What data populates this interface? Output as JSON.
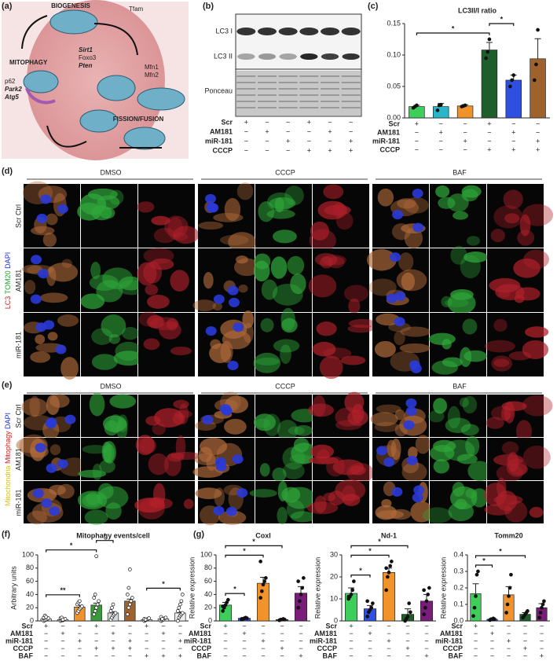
{
  "panel_labels": [
    "(a)",
    "(b)",
    "(c)",
    "(d)",
    "(e)",
    "(f)",
    "(g)"
  ],
  "diagram": [
    "BIOGENESIS",
    "Tfam",
    "MITOPHAGY",
    "Sirt1",
    "Foxo3",
    "Pten",
    "p62",
    "Park2",
    "Atg5",
    "Mfn1",
    "Mfn2",
    "FISSION/FUSION"
  ],
  "blot": {
    "labels": [
      "LC3 I",
      "LC3 II",
      "Ponceau"
    ],
    "conditions": [
      {
        "name": "Scr",
        "marks": [
          "+",
          "−",
          "−",
          "+",
          "−",
          "−"
        ]
      },
      {
        "name": "AM181",
        "marks": [
          "−",
          "+",
          "−",
          "−",
          "+",
          "−"
        ]
      },
      {
        "name": "miR-181",
        "marks": [
          "−",
          "−",
          "+",
          "−",
          "−",
          "+"
        ]
      },
      {
        "name": "CCCP",
        "marks": [
          "−",
          "−",
          "−",
          "+",
          "+",
          "+"
        ]
      }
    ]
  },
  "microscopy_d": {
    "columns": [
      "DMSO",
      "CCCP",
      "BAF"
    ],
    "rows": [
      "Scr Ctrl",
      "AM181",
      "miR-181"
    ],
    "stain": [
      "LC3",
      "TOM20",
      "DAPI"
    ]
  },
  "microscopy_e": {
    "columns": [
      "DMSO",
      "CCCP",
      "BAF"
    ],
    "rows": [
      "Scr Ctrl",
      "AM181",
      "miR-181"
    ],
    "stain": [
      "Mitochondria",
      "Mitophagy",
      "DAPI"
    ]
  },
  "chart_data": [
    {
      "type": "bar",
      "title": "LC3II/I ratio",
      "values": [
        0.018,
        0.018,
        0.019,
        0.108,
        0.06,
        0.094
      ],
      "errors": [
        0.002,
        0.005,
        0.002,
        0.012,
        0.008,
        0.032
      ],
      "colors": [
        "#3ecf5a",
        "#29b6c8",
        "#f2922a",
        "#1e5e2a",
        "#2f4fe0",
        "#a0622d"
      ],
      "points": [
        [
          0.016,
          0.018,
          0.02
        ],
        [
          0.012,
          0.02,
          0.021
        ],
        [
          0.018,
          0.019,
          0.02
        ],
        [
          0.095,
          0.105,
          0.125
        ],
        [
          0.05,
          0.06,
          0.068
        ],
        [
          0.06,
          0.085,
          0.14
        ]
      ],
      "marker": "filled",
      "ylim": [
        0,
        0.15
      ],
      "yticks": [
        {
          "value": 0,
          "label": "0.00"
        },
        0.05,
        {
          "value": 0.1,
          "label": "0.10"
        },
        0.15
      ],
      "significance": [
        {
          "label": "*",
          "between": [
            0,
            3
          ]
        },
        {
          "label": "*",
          "between": [
            3,
            4
          ]
        }
      ],
      "conditions": [
        {
          "name": "Scr",
          "marks": [
            "+",
            "−",
            "−",
            "+",
            "−",
            "−"
          ]
        },
        {
          "name": "AM181",
          "marks": [
            "−",
            "+",
            "−",
            "−",
            "+",
            "−"
          ]
        },
        {
          "name": "miR-181",
          "marks": [
            "−",
            "−",
            "+",
            "−",
            "−",
            "+"
          ]
        },
        {
          "name": "CCCP",
          "marks": [
            "−",
            "−",
            "−",
            "+",
            "+",
            "+"
          ]
        }
      ]
    },
    {
      "type": "bar",
      "title": "Mitophagy events/cell",
      "ylabel": "Arbitrary units",
      "values": [
        3,
        2,
        21,
        24,
        12,
        30,
        2,
        3,
        12
      ],
      "errors": [
        1,
        0.8,
        2.5,
        3,
        2,
        3,
        0.6,
        0.7,
        1.5
      ],
      "colors": [
        "#eeeeee",
        "#eeeeee",
        "#f2922a",
        "#3a9a3a",
        "#d9d9d9",
        "#a0622d",
        "#eeeeee",
        "#eeeeee",
        "#eeeeee"
      ],
      "points": [
        [
          0,
          1,
          2,
          3,
          4,
          5,
          8,
          6
        ],
        [
          0,
          1,
          1,
          2,
          3,
          4,
          5,
          2
        ],
        [
          12,
          15,
          18,
          20,
          22,
          25,
          28,
          30
        ],
        [
          10,
          15,
          20,
          25,
          30,
          35,
          40,
          98
        ],
        [
          2,
          5,
          8,
          10,
          12,
          15,
          20,
          25
        ],
        [
          10,
          20,
          25,
          30,
          35,
          40,
          50,
          78
        ],
        [
          0,
          1,
          2,
          3,
          4,
          3,
          2
        ],
        [
          0,
          1,
          2,
          4,
          5,
          6,
          3
        ],
        [
          0,
          5,
          8,
          10,
          12,
          15,
          20,
          25,
          30,
          40
        ]
      ],
      "marker": "open",
      "ylim": [
        0,
        100
      ],
      "yticks": [
        0,
        20,
        40,
        60,
        80,
        100
      ],
      "significance": [
        {
          "label": "**",
          "between": [
            0,
            2
          ]
        },
        {
          "label": "*",
          "between": [
            0,
            3
          ]
        },
        {
          "label": "*",
          "between": [
            3,
            4
          ]
        },
        {
          "label": "*",
          "between": [
            6,
            8
          ]
        }
      ],
      "conditions": [
        {
          "name": "Scr",
          "marks": [
            "+",
            "−",
            "−",
            "+",
            "−",
            "−",
            "+",
            "−",
            "−"
          ]
        },
        {
          "name": "AM181",
          "marks": [
            "−",
            "+",
            "−",
            "−",
            "+",
            "−",
            "−",
            "+",
            "−"
          ]
        },
        {
          "name": "miR-181",
          "marks": [
            "−",
            "−",
            "+",
            "−",
            "−",
            "+",
            "−",
            "−",
            "+"
          ]
        },
        {
          "name": "CCCP",
          "marks": [
            "−",
            "−",
            "−",
            "+",
            "+",
            "+",
            "−",
            "−",
            "−"
          ]
        },
        {
          "name": "BAF",
          "marks": [
            "−",
            "−",
            "−",
            "−",
            "−",
            "−",
            "+",
            "+",
            "+"
          ]
        }
      ]
    },
    {
      "type": "bar",
      "title": "CoxI",
      "ylabel": "Relative expression",
      "values": [
        24,
        4,
        57,
        2,
        42
      ],
      "errors": [
        4,
        1,
        9,
        0.5,
        10
      ],
      "colors": [
        "#3ecf5a",
        "#2f4fe0",
        "#f2922a",
        "#1e5e2a",
        "#7a1d7a"
      ],
      "points": [
        [
          15,
          20,
          24,
          28,
          32,
          22
        ],
        [
          2,
          3,
          4,
          5,
          4,
          3
        ],
        [
          35,
          45,
          55,
          60,
          65,
          90
        ],
        [
          1,
          2,
          2,
          3,
          2
        ],
        [
          20,
          30,
          40,
          50,
          65,
          60
        ]
      ],
      "marker": "filled",
      "ylim": [
        0,
        100
      ],
      "yticks": [
        0,
        20,
        40,
        60,
        80,
        100
      ],
      "significance": [
        {
          "label": "*",
          "between": [
            0,
            1
          ]
        },
        {
          "label": "*",
          "between": [
            0,
            2
          ]
        },
        {
          "label": "*",
          "between": [
            0,
            3
          ]
        }
      ],
      "conditions": [
        {
          "name": "Scr",
          "marks": [
            "+",
            "−",
            "−",
            "−",
            "−"
          ]
        },
        {
          "name": "AM181",
          "marks": [
            "−",
            "+",
            "−",
            "−",
            "−"
          ]
        },
        {
          "name": "miR-181",
          "marks": [
            "−",
            "−",
            "+",
            "−",
            "−"
          ]
        },
        {
          "name": "CCCP",
          "marks": [
            "−",
            "−",
            "−",
            "+",
            "−"
          ]
        },
        {
          "name": "BAF",
          "marks": [
            "−",
            "−",
            "−",
            "−",
            "+"
          ]
        }
      ]
    },
    {
      "type": "bar",
      "title": "Nd-1",
      "ylabel": "Relative expression",
      "values": [
        12.5,
        5.5,
        22,
        3,
        9
      ],
      "errors": [
        2.5,
        1.5,
        2,
        2.5,
        3
      ],
      "colors": [
        "#3ecf5a",
        "#2f4fe0",
        "#f2922a",
        "#1e5e2a",
        "#7a1d7a"
      ],
      "points": [
        [
          10,
          11,
          12,
          14,
          18,
          11
        ],
        [
          2,
          4,
          5,
          6,
          8,
          9
        ],
        [
          14,
          20,
          22,
          25,
          27,
          24
        ],
        [
          0,
          1,
          2,
          8,
          4
        ],
        [
          3,
          6,
          9,
          12,
          15,
          14
        ]
      ],
      "marker": "filled",
      "ylim": [
        0,
        30
      ],
      "yticks": [
        0,
        10,
        20,
        30
      ],
      "significance": [
        {
          "label": "*",
          "between": [
            0,
            1
          ]
        },
        {
          "label": "*",
          "between": [
            0,
            2
          ]
        },
        {
          "label": "*",
          "between": [
            0,
            3
          ]
        }
      ],
      "conditions": [
        {
          "name": "Scr",
          "marks": [
            "+",
            "−",
            "−",
            "−",
            "−"
          ]
        },
        {
          "name": "AM181",
          "marks": [
            "−",
            "+",
            "−",
            "−",
            "−"
          ]
        },
        {
          "name": "miR-181",
          "marks": [
            "−",
            "−",
            "+",
            "−",
            "−"
          ]
        },
        {
          "name": "CCCP",
          "marks": [
            "−",
            "−",
            "−",
            "+",
            "−"
          ]
        },
        {
          "name": "BAF",
          "marks": [
            "−",
            "−",
            "−",
            "−",
            "+"
          ]
        }
      ]
    },
    {
      "type": "bar",
      "title": "Tomm20",
      "ylabel": "Relative expression",
      "values": [
        0.165,
        0.01,
        0.158,
        0.04,
        0.08
      ],
      "errors": [
        0.06,
        0.005,
        0.05,
        0.01,
        0.025
      ],
      "colors": [
        "#3ecf5a",
        "#2f4fe0",
        "#f2922a",
        "#1e5e2a",
        "#7a1d7a"
      ],
      "points": [
        [
          0.03,
          0.08,
          0.15,
          0.28,
          0.3
        ],
        [
          0.005,
          0.01,
          0.01,
          0.015,
          0.01
        ],
        [
          0.05,
          0.1,
          0.15,
          0.2,
          0.28
        ],
        [
          0.02,
          0.03,
          0.04,
          0.05,
          0.06
        ],
        [
          0.02,
          0.05,
          0.08,
          0.1,
          0.12
        ]
      ],
      "marker": "filled",
      "ylim": [
        0,
        0.4
      ],
      "yticks": [
        {
          "value": 0,
          "label": "0.0"
        },
        0.1,
        0.2,
        0.3,
        0.4
      ],
      "significance": [
        {
          "label": "*",
          "between": [
            0,
            1
          ]
        },
        {
          "label": "*",
          "between": [
            0,
            3
          ]
        }
      ],
      "conditions": [
        {
          "name": "Scr",
          "marks": [
            "+",
            "−",
            "−",
            "−",
            "−"
          ]
        },
        {
          "name": "AM181",
          "marks": [
            "−",
            "+",
            "−",
            "−",
            "−"
          ]
        },
        {
          "name": "miR-181",
          "marks": [
            "−",
            "−",
            "+",
            "−",
            "−"
          ]
        },
        {
          "name": "CCCP",
          "marks": [
            "−",
            "−",
            "−",
            "+",
            "−"
          ]
        },
        {
          "name": "BAF",
          "marks": [
            "−",
            "−",
            "−",
            "−",
            "+"
          ]
        }
      ]
    }
  ]
}
